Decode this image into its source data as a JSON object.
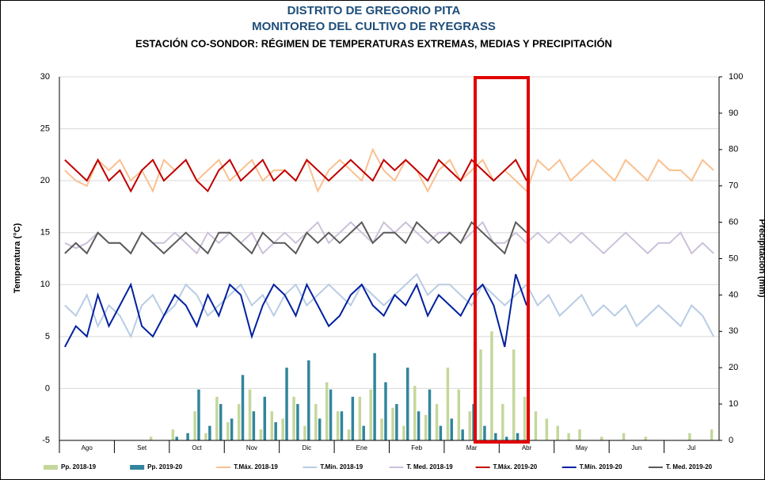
{
  "chart_data": {
    "type": "combo",
    "title": "DISTRITO DE GREGORIO PITA",
    "subtitle": "MONITOREO DEL CULTIVO DE RYEGRASS",
    "chart_heading": "ESTACIÓN CO-SONDOR: RÉGIMEN DE TEMPERATURAS EXTREMAS, MEDIAS Y PRECIPITACIÓN",
    "y_label": "Temperatura (°C)",
    "y2_label": "Precipitación (mm)",
    "categories": [
      null,
      null,
      "Ago",
      null,
      null,
      null,
      null,
      "Set",
      null,
      null,
      null,
      null,
      "Oct",
      null,
      null,
      null,
      null,
      "Nov",
      null,
      null,
      null,
      null,
      "Dic",
      null,
      null,
      null,
      null,
      "Ene",
      null,
      null,
      null,
      null,
      "Feb",
      null,
      null,
      null,
      null,
      "Mar",
      null,
      null,
      null,
      null,
      "Abr",
      null,
      null,
      null,
      null,
      "May",
      null,
      null,
      null,
      null,
      "Jun",
      null,
      null,
      null,
      null,
      "Jul",
      null,
      null
    ],
    "ylim": [
      -5,
      30
    ],
    "yticks": [
      -5,
      0,
      5,
      10,
      15,
      20,
      25,
      30
    ],
    "y2lim": [
      0,
      100
    ],
    "y2ticks": [
      0,
      10,
      20,
      30,
      40,
      50,
      60,
      70,
      80,
      90,
      100
    ],
    "grid": true,
    "legend": "bottom",
    "series": [
      {
        "name": "Pp. 2018-19",
        "type": "bar",
        "axis": "y2",
        "color": "#c4d79b",
        "values": [
          0,
          0,
          0,
          0,
          0,
          0,
          0,
          0,
          1,
          0,
          3,
          0,
          8,
          2,
          12,
          5,
          10,
          14,
          3,
          8,
          6,
          12,
          4,
          10,
          16,
          8,
          3,
          12,
          14,
          6,
          9,
          4,
          15,
          7,
          10,
          20,
          14,
          8,
          25,
          30,
          10,
          25,
          12,
          8,
          6,
          4,
          2,
          3,
          0,
          1,
          0,
          2,
          0,
          1,
          0,
          0,
          0,
          2,
          0,
          3
        ]
      },
      {
        "name": "Pp. 2019-20",
        "type": "bar",
        "axis": "y2",
        "color": "#31859c",
        "values": [
          0,
          0,
          0,
          0,
          0,
          0,
          0,
          0,
          0,
          0,
          1,
          2,
          14,
          4,
          10,
          6,
          18,
          8,
          12,
          5,
          20,
          10,
          22,
          6,
          14,
          8,
          12,
          4,
          24,
          16,
          10,
          20,
          8,
          14,
          4,
          6,
          3,
          10,
          4,
          2,
          1,
          2,
          0,
          null,
          null,
          null,
          null,
          null,
          null,
          null,
          null,
          null,
          null,
          null,
          null,
          null,
          null,
          null,
          null,
          null
        ]
      },
      {
        "name": "T.Máx. 2018-19",
        "type": "line",
        "color": "#fac090",
        "values": [
          21,
          20,
          19.5,
          22,
          21,
          22,
          20,
          21,
          19,
          22,
          21,
          22,
          20,
          21,
          22,
          20,
          21,
          22,
          20,
          21,
          21,
          20,
          22,
          19,
          21,
          22,
          21,
          20,
          23,
          21,
          20,
          22,
          21,
          19,
          21,
          22,
          20,
          21,
          22,
          20,
          21,
          20,
          19,
          22,
          21,
          22,
          20,
          21,
          22,
          21,
          20,
          22,
          21,
          20,
          22,
          21,
          21,
          20,
          22,
          21
        ]
      },
      {
        "name": "T.Mín. 2018-19",
        "type": "line",
        "color": "#b8cce4",
        "values": [
          8,
          7,
          9,
          6,
          8,
          7,
          5,
          8,
          9,
          7,
          8,
          10,
          9,
          7,
          8,
          9,
          10,
          8,
          9,
          7,
          9,
          10,
          8,
          9,
          10,
          9,
          8,
          10,
          9,
          8,
          9,
          10,
          11,
          9,
          10,
          10,
          9,
          8,
          10,
          9,
          8,
          9,
          10,
          8,
          9,
          7,
          8,
          9,
          7,
          8,
          7,
          8,
          6,
          7,
          8,
          7,
          6,
          8,
          7,
          5
        ]
      },
      {
        "name": "T. Med. 2018-19",
        "type": "line",
        "color": "#ccc0da",
        "values": [
          14,
          13.5,
          14,
          15,
          14,
          14,
          13,
          15,
          14,
          14,
          15,
          14,
          13,
          15,
          14,
          15,
          14,
          15,
          13,
          14,
          15,
          14,
          15,
          16,
          14,
          15,
          16,
          15,
          14,
          16,
          15,
          16,
          15,
          14,
          15,
          15,
          14,
          15,
          16,
          14,
          14,
          15,
          14,
          15,
          14,
          15,
          14,
          15,
          14,
          13,
          14,
          15,
          14,
          13,
          14,
          14,
          15,
          13,
          14,
          13
        ]
      },
      {
        "name": "T.Máx. 2019-20",
        "type": "line",
        "color": "#c00000",
        "values": [
          22,
          21,
          20,
          22,
          20,
          21,
          19,
          21,
          22,
          20,
          21,
          22,
          20,
          19,
          21,
          22,
          20,
          21,
          22,
          20,
          21,
          20,
          22,
          21,
          20,
          21,
          22,
          21,
          20,
          22,
          21,
          22,
          21,
          20,
          22,
          21,
          20,
          22,
          21,
          20,
          21,
          22,
          20,
          null,
          null,
          null,
          null,
          null,
          null,
          null,
          null,
          null,
          null,
          null,
          null,
          null,
          null,
          null,
          null,
          null
        ]
      },
      {
        "name": "T.Mín. 2019-20",
        "type": "line",
        "color": "#00209f",
        "values": [
          4,
          6,
          5,
          9,
          6,
          8,
          10,
          6,
          5,
          7,
          9,
          8,
          6,
          9,
          7,
          10,
          9,
          5,
          8,
          10,
          9,
          7,
          10,
          8,
          6,
          7,
          9,
          10,
          8,
          7,
          9,
          8,
          10,
          7,
          9,
          8,
          7,
          9,
          10,
          8,
          4,
          11,
          8,
          null,
          null,
          null,
          null,
          null,
          null,
          null,
          null,
          null,
          null,
          null,
          null,
          null,
          null,
          null,
          null,
          null
        ]
      },
      {
        "name": "T. Med. 2019-20",
        "type": "line",
        "color": "#595959",
        "values": [
          13,
          14,
          13,
          15,
          14,
          14,
          13,
          15,
          14,
          13,
          14,
          15,
          14,
          13,
          15,
          15,
          14,
          13,
          15,
          14,
          14,
          13,
          15,
          14,
          15,
          14,
          15,
          16,
          14,
          15,
          15,
          14,
          16,
          15,
          14,
          15,
          14,
          16,
          15,
          14,
          13,
          16,
          15,
          null,
          null,
          null,
          null,
          null,
          null,
          null,
          null,
          null,
          null,
          null,
          null,
          null,
          null,
          null,
          null,
          null
        ]
      }
    ]
  }
}
